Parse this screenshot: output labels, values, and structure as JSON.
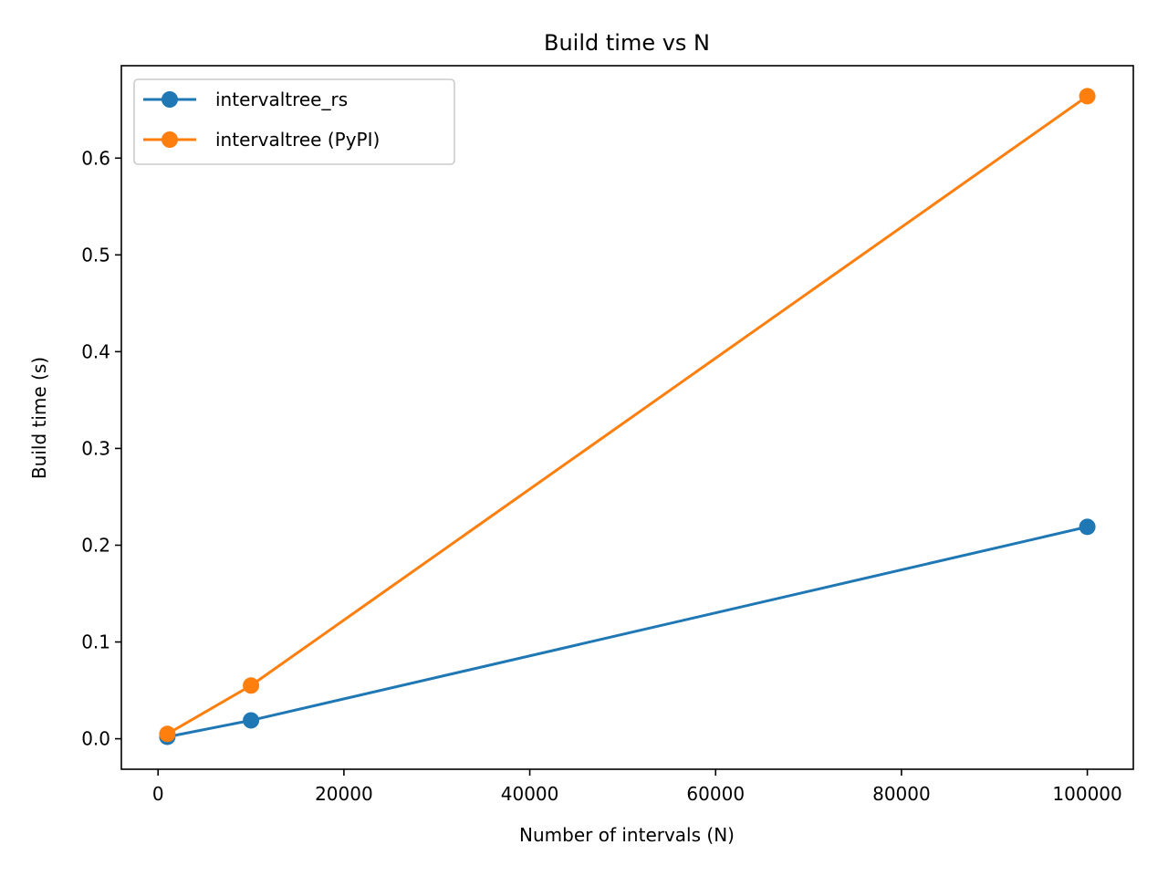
{
  "chart_data": {
    "type": "line",
    "title": "Build time vs N",
    "xlabel": "Number of intervals (N)",
    "ylabel": "Build time (s)",
    "xlim": [
      -3950,
      104950
    ],
    "ylim": [
      -0.0315,
      0.6955
    ],
    "xticks": [
      0,
      20000,
      40000,
      60000,
      80000,
      100000
    ],
    "yticks": [
      0.0,
      0.1,
      0.2,
      0.3,
      0.4,
      0.5,
      0.6
    ],
    "xtick_labels": [
      "0",
      "20000",
      "40000",
      "60000",
      "80000",
      "100000"
    ],
    "ytick_labels": [
      "0.0",
      "0.1",
      "0.2",
      "0.3",
      "0.4",
      "0.5",
      "0.6"
    ],
    "grid": false,
    "legend_position": "upper-left",
    "series": [
      {
        "name": "intervaltree_rs",
        "color": "#1f77b4",
        "marker": "circle",
        "x": [
          1000,
          10000,
          100000
        ],
        "y": [
          0.002,
          0.019,
          0.219
        ]
      },
      {
        "name": "intervaltree (PyPI)",
        "color": "#ff7f0e",
        "marker": "circle",
        "x": [
          1000,
          10000,
          100000
        ],
        "y": [
          0.005,
          0.055,
          0.664
        ]
      }
    ]
  }
}
